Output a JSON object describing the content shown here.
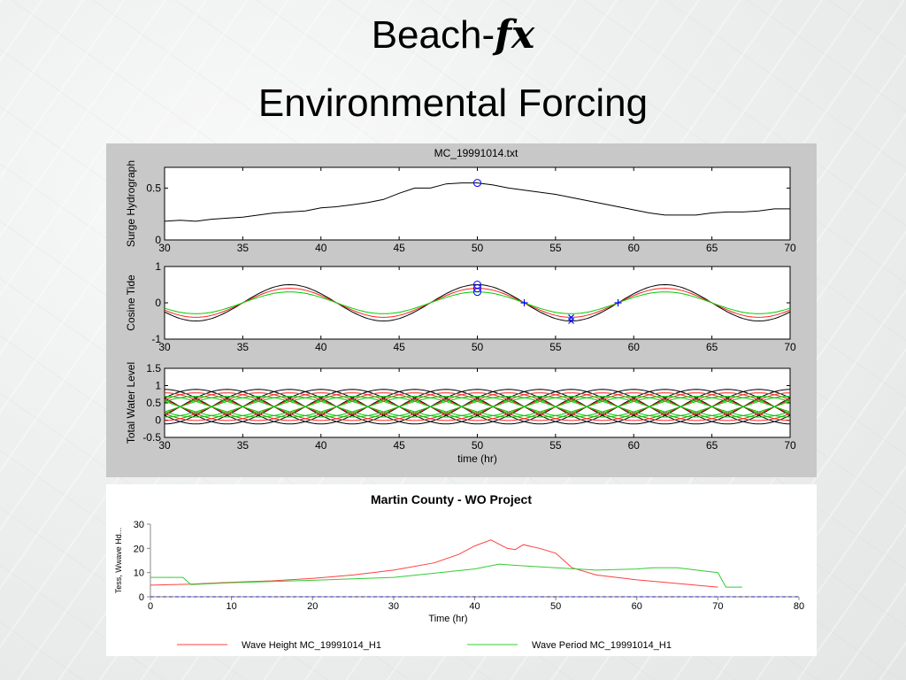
{
  "slide": {
    "title": "Beach-",
    "title_fx": "fx",
    "subtitle": "Environmental Forcing"
  },
  "colors": {
    "matlab_bg": "#c8c8c8",
    "black_line": "#000000",
    "red_line": "#ff2020",
    "green_line": "#00cc00",
    "marker_blue": "#0000ff",
    "excel_red": "#ff4040",
    "excel_green": "#33cc33",
    "excel_blue_dash": "#2020aa"
  },
  "chart_data": [
    {
      "type": "line",
      "title": "MC_19991014.txt",
      "ylabel": "Surge Hydrograph",
      "xlim": [
        30,
        70
      ],
      "ylim": [
        0,
        0.7
      ],
      "xticks": [
        30,
        35,
        40,
        45,
        50,
        55,
        60,
        65,
        70
      ],
      "yticks": [
        0,
        0.5
      ],
      "series": [
        {
          "x": [
            30,
            31,
            32,
            33,
            34,
            35,
            36,
            37,
            38,
            39,
            40,
            41,
            42,
            43,
            44,
            45,
            46,
            47,
            48,
            49,
            50,
            51,
            52,
            53,
            54,
            55,
            56,
            57,
            58,
            59,
            60,
            61,
            62,
            63,
            64,
            65,
            66,
            67,
            68,
            69,
            70
          ],
          "y": [
            0.18,
            0.19,
            0.18,
            0.2,
            0.21,
            0.22,
            0.24,
            0.26,
            0.27,
            0.28,
            0.31,
            0.32,
            0.34,
            0.36,
            0.39,
            0.45,
            0.5,
            0.5,
            0.54,
            0.55,
            0.55,
            0.53,
            0.5,
            0.48,
            0.46,
            0.44,
            0.41,
            0.38,
            0.35,
            0.32,
            0.29,
            0.26,
            0.24,
            0.24,
            0.24,
            0.26,
            0.27,
            0.27,
            0.28,
            0.3,
            0.3
          ]
        }
      ],
      "markers": [
        {
          "x": 50,
          "y": 0.55,
          "shape": "circle"
        }
      ]
    },
    {
      "type": "line",
      "ylabel": "Cosine Tide",
      "xlim": [
        30,
        70
      ],
      "ylim": [
        -1,
        1
      ],
      "xticks": [
        30,
        35,
        40,
        45,
        50,
        55,
        60,
        65,
        70
      ],
      "yticks": [
        -1,
        0,
        1
      ],
      "series": [
        {
          "color": "black",
          "amplitude": 0.5,
          "period_hr": 12,
          "peak_hr": 38
        },
        {
          "color": "red",
          "amplitude": 0.4,
          "period_hr": 12,
          "peak_hr": 38
        },
        {
          "color": "green",
          "amplitude": 0.3,
          "period_hr": 12,
          "peak_hr": 38
        }
      ],
      "markers": [
        {
          "x": 50,
          "y": 0.5,
          "shape": "circle"
        },
        {
          "x": 50,
          "y": 0.4,
          "shape": "circle"
        },
        {
          "x": 50,
          "y": 0.3,
          "shape": "circle"
        },
        {
          "x": 53,
          "y": 0.0,
          "shape": "plus"
        },
        {
          "x": 56,
          "y": -0.4,
          "shape": "x"
        },
        {
          "x": 56,
          "y": -0.5,
          "shape": "x"
        },
        {
          "x": 59,
          "y": 0.0,
          "shape": "plus"
        }
      ]
    },
    {
      "type": "line",
      "ylabel": "Total Water Level",
      "xlabel": "time (hr)",
      "xlim": [
        30,
        70
      ],
      "ylim": [
        -0.5,
        1.5
      ],
      "xticks": [
        30,
        35,
        40,
        45,
        50,
        55,
        60,
        65,
        70
      ],
      "yticks": [
        -0.5,
        0,
        0.5,
        1,
        1.5
      ],
      "series": [
        {
          "color": "black",
          "center": 0.39,
          "amplitude": 0.5
        },
        {
          "color": "red",
          "center": 0.39,
          "amplitude": 0.4
        },
        {
          "color": "green",
          "center": 0.39,
          "amplitude": 0.3
        }
      ]
    },
    {
      "type": "line",
      "title": "Martin County - WO Project",
      "ylabel": "Tess, Wwave Hd...",
      "xlabel": "Time (hr)",
      "xlim": [
        0,
        80
      ],
      "ylim": [
        0,
        30
      ],
      "xticks": [
        0,
        10,
        20,
        30,
        40,
        50,
        60,
        70,
        80
      ],
      "yticks": [
        0,
        10,
        20,
        30
      ],
      "series": [
        {
          "name": "Wave Height MC_19991014_H1",
          "x": [
            0,
            5,
            10,
            15,
            20,
            25,
            30,
            35,
            38,
            40,
            42,
            44,
            45,
            46,
            48,
            50,
            52,
            55,
            60,
            65,
            70
          ],
          "y": [
            4.8,
            5.2,
            6.0,
            6.6,
            7.6,
            9.0,
            11.0,
            14.0,
            17.5,
            21.0,
            23.5,
            20.0,
            19.5,
            21.5,
            20.0,
            18.0,
            12.0,
            9.0,
            7.0,
            5.5,
            4.0
          ]
        },
        {
          "name": "Wave Period MC_19991014_H1",
          "x": [
            0,
            4,
            5,
            10,
            15,
            20,
            30,
            40,
            43,
            45,
            50,
            55,
            60,
            62,
            65,
            70,
            71,
            73
          ],
          "y": [
            8.0,
            8.0,
            5.0,
            5.8,
            6.3,
            6.8,
            8.0,
            11.5,
            13.5,
            13.0,
            12.0,
            11.0,
            11.5,
            12.0,
            12.0,
            10.0,
            4.0,
            4.0
          ]
        },
        {
          "x": [
            0,
            80
          ],
          "y": [
            0,
            0
          ]
        }
      ]
    }
  ]
}
